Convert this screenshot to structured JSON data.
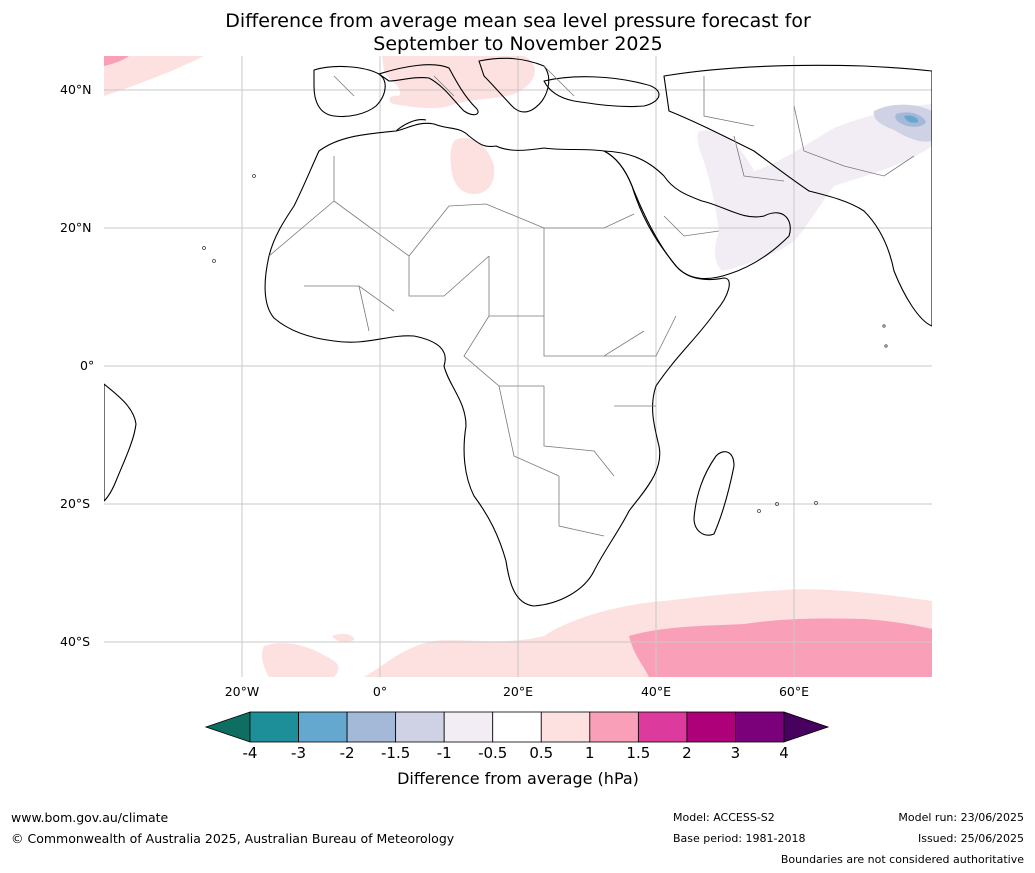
{
  "title_line1": "Difference from average mean sea level pressure forecast for",
  "title_line2": "September to November 2025",
  "lat_labels": [
    "40°N",
    "20°N",
    "0°",
    "20°S",
    "40°S"
  ],
  "lon_labels": [
    "20°W",
    "0°",
    "20°E",
    "40°E",
    "60°E"
  ],
  "colorbar": {
    "label": "Difference from average (hPa)",
    "ticks": [
      "-4",
      "-3",
      "-2",
      "-1.5",
      "-1",
      "-0.5",
      "0.5",
      "1",
      "1.5",
      "2",
      "3",
      "4"
    ],
    "colors": [
      "#0e6e62",
      "#1c8f98",
      "#65a8cf",
      "#a4b8d8",
      "#cfd1e5",
      "#f2edf4",
      "#ffffff",
      "#fde0e0",
      "#f99fb8",
      "#dc3a9c",
      "#ae0078",
      "#7a0179",
      "#47015f"
    ]
  },
  "footer": {
    "url": "www.bom.gov.au/climate",
    "copyright": "© Commonwealth of Australia 2025, Australian Bureau of Meteorology",
    "model": "Model: ACCESS-S2",
    "base_period": "Base period: 1981-2018",
    "model_run": "Model run: 23/06/2025",
    "issued": "Issued: 25/06/2025",
    "disclaimer": "Boundaries are not considered authoritative"
  },
  "anomaly_colors": {
    "light_pink": "#fde0e0",
    "pink": "#f99fb8",
    "lavender": "#f2edf4",
    "blue": "#a4b8d8"
  }
}
